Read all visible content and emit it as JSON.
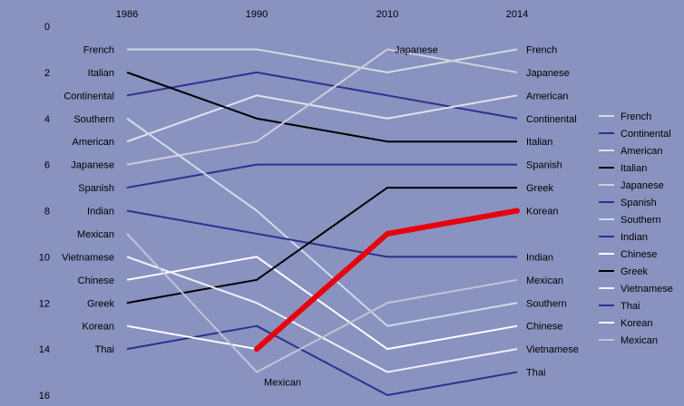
{
  "chart_data": {
    "type": "line",
    "title": "",
    "xlabel": "",
    "ylabel": "",
    "x": [
      "1986",
      "1990",
      "2010",
      "2014"
    ],
    "y_ticks": [
      "0",
      "2",
      "4",
      "6",
      "8",
      "10",
      "12",
      "14",
      "16"
    ],
    "ylim": [
      0,
      16
    ],
    "y_inverted": true,
    "grid": false,
    "legend_position": "right",
    "colors": {
      "background": "#8a92c0",
      "navy": "#2f2f8f",
      "black": "#000000",
      "white": "#ffffff",
      "light_gray": "#cfcfd9",
      "mint": "#cde2de",
      "light_blue": "#c8e0ea",
      "pale_gray": "#c2c4d4",
      "highlight": "#e8000d"
    },
    "series": [
      {
        "name": "French",
        "values": [
          1,
          1,
          2,
          1
        ],
        "color": "#cde2de",
        "width": 2,
        "labels": [
          "French",
          null,
          null,
          "French"
        ]
      },
      {
        "name": "Continental",
        "values": [
          3,
          2,
          3,
          4
        ],
        "color": "#2f2f8f",
        "width": 2,
        "labels": [
          "Continental",
          null,
          null,
          "Continental"
        ]
      },
      {
        "name": "American",
        "values": [
          5,
          3,
          4,
          3
        ],
        "color": "#e3e3ea",
        "width": 2,
        "labels": [
          "American",
          null,
          null,
          "American"
        ]
      },
      {
        "name": "Italian",
        "values": [
          2,
          4,
          5,
          5
        ],
        "color": "#000000",
        "width": 2,
        "labels": [
          "Italian",
          null,
          null,
          "Italian"
        ]
      },
      {
        "name": "Japanese",
        "values": [
          6,
          5,
          1,
          2
        ],
        "color": "#cfcfd9",
        "width": 2,
        "labels": [
          "Japanese",
          null,
          "Japanese",
          "Japanese"
        ]
      },
      {
        "name": "Spanish",
        "values": [
          7,
          6,
          6,
          6
        ],
        "color": "#2f2f8f",
        "width": 2,
        "labels": [
          "Spanish",
          null,
          null,
          "Spanish"
        ]
      },
      {
        "name": "Southern",
        "values": [
          4,
          8,
          13,
          12
        ],
        "color": "#c8e0ea",
        "width": 2,
        "labels": [
          "Southern",
          null,
          null,
          "Southern"
        ]
      },
      {
        "name": "Indian",
        "values": [
          8,
          9,
          10,
          10
        ],
        "color": "#2f2f8f",
        "width": 2,
        "labels": [
          "Indian",
          null,
          null,
          "Indian"
        ]
      },
      {
        "name": "Chinese",
        "values": [
          11,
          10,
          14,
          13
        ],
        "color": "#ffffff",
        "width": 2,
        "labels": [
          "Chinese",
          null,
          null,
          "Chinese"
        ]
      },
      {
        "name": "Greek",
        "values": [
          12,
          11,
          7,
          7
        ],
        "color": "#000000",
        "width": 2,
        "labels": [
          "Greek",
          null,
          null,
          "Greek"
        ]
      },
      {
        "name": "Vietnamese",
        "values": [
          10,
          12,
          15,
          14
        ],
        "color": "#f1f1f5",
        "width": 2,
        "labels": [
          "Vietnamese",
          null,
          null,
          "Vietnamese"
        ]
      },
      {
        "name": "Thai",
        "values": [
          14,
          13,
          16,
          15
        ],
        "color": "#2f2f8f",
        "width": 2,
        "labels": [
          "Thai",
          null,
          null,
          "Thai"
        ]
      },
      {
        "name": "Korean",
        "values": [
          13,
          14,
          9,
          8
        ],
        "color": "#ffffff",
        "width": 2,
        "labels": [
          "Korean",
          null,
          null,
          "Korean"
        ]
      },
      {
        "name": "Mexican",
        "values": [
          9,
          15,
          12,
          11
        ],
        "color": "#c2c4d4",
        "width": 2,
        "labels": [
          "Mexican",
          "Mexican",
          null,
          "Mexican"
        ]
      }
    ],
    "highlight": {
      "series": "Korean",
      "color": "#e8000d",
      "width": 6,
      "from_x": "1990"
    }
  }
}
